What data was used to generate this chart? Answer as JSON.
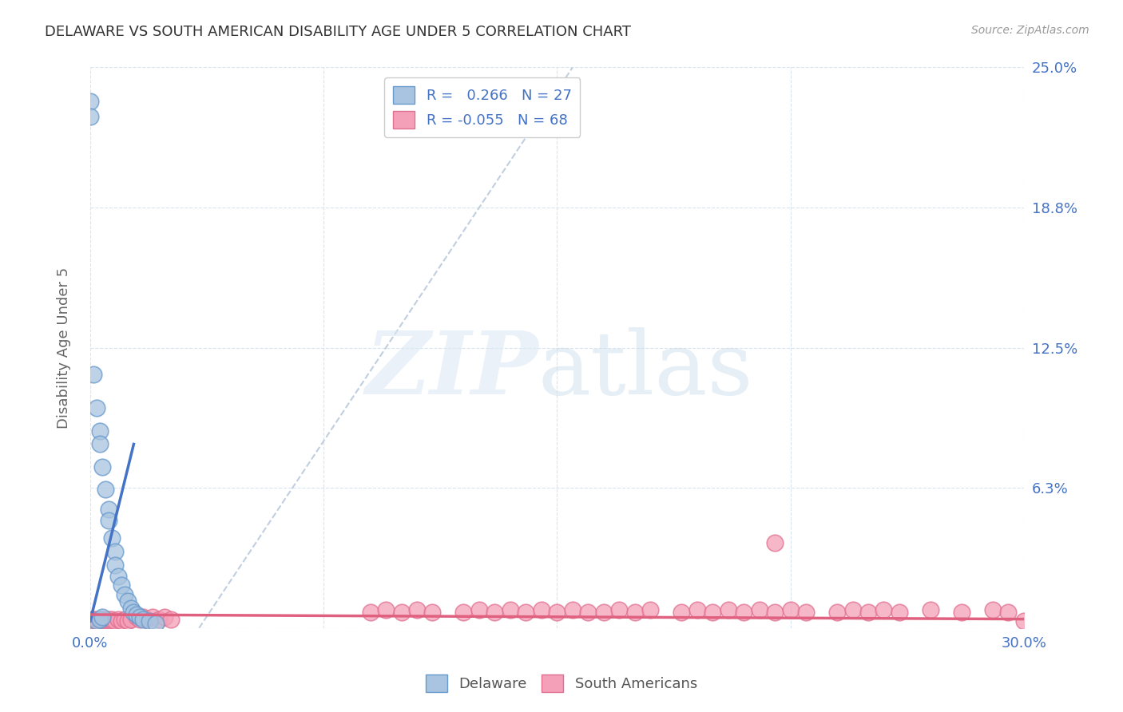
{
  "title": "DELAWARE VS SOUTH AMERICAN DISABILITY AGE UNDER 5 CORRELATION CHART",
  "source": "Source: ZipAtlas.com",
  "ylabel": "Disability Age Under 5",
  "xlim": [
    0.0,
    0.3
  ],
  "ylim": [
    0.0,
    0.25
  ],
  "xtick_positions": [
    0.0,
    0.075,
    0.15,
    0.225,
    0.3
  ],
  "xticklabels": [
    "0.0%",
    "",
    "",
    "",
    "30.0%"
  ],
  "ytick_positions": [
    0.0,
    0.0625,
    0.125,
    0.1875,
    0.25
  ],
  "yticklabels_right": [
    "",
    "6.3%",
    "12.5%",
    "18.8%",
    "25.0%"
  ],
  "delaware_R": 0.266,
  "delaware_N": 27,
  "south_american_R": -0.055,
  "south_american_N": 68,
  "delaware_color": "#a8c4e0",
  "delaware_edge_color": "#6699cc",
  "delaware_line_color": "#4472c4",
  "south_american_color": "#f4a0b8",
  "south_american_edge_color": "#e07090",
  "south_american_line_color": "#e06080",
  "diag_line_color": "#c0cfe0",
  "background_color": "#ffffff",
  "grid_color": "#d8e4f0",
  "delaware_x": [
    0.0,
    0.0,
    0.001,
    0.002,
    0.003,
    0.003,
    0.004,
    0.005,
    0.006,
    0.006,
    0.007,
    0.008,
    0.008,
    0.009,
    0.01,
    0.011,
    0.012,
    0.013,
    0.014,
    0.015,
    0.016,
    0.017,
    0.019,
    0.021,
    0.002,
    0.003,
    0.004
  ],
  "delaware_y": [
    0.235,
    0.228,
    0.113,
    0.098,
    0.088,
    0.082,
    0.072,
    0.062,
    0.053,
    0.048,
    0.04,
    0.034,
    0.028,
    0.023,
    0.019,
    0.015,
    0.012,
    0.009,
    0.007,
    0.006,
    0.005,
    0.004,
    0.003,
    0.002,
    0.003,
    0.004,
    0.005
  ],
  "south_american_x": [
    0.0,
    0.0,
    0.001,
    0.001,
    0.002,
    0.002,
    0.003,
    0.003,
    0.004,
    0.004,
    0.005,
    0.005,
    0.006,
    0.006,
    0.007,
    0.007,
    0.008,
    0.009,
    0.01,
    0.011,
    0.012,
    0.013,
    0.015,
    0.016,
    0.017,
    0.018,
    0.02,
    0.022,
    0.024,
    0.026,
    0.09,
    0.095,
    0.1,
    0.105,
    0.11,
    0.12,
    0.125,
    0.13,
    0.135,
    0.14,
    0.145,
    0.15,
    0.155,
    0.16,
    0.165,
    0.17,
    0.175,
    0.18,
    0.19,
    0.195,
    0.2,
    0.205,
    0.21,
    0.215,
    0.22,
    0.225,
    0.23,
    0.24,
    0.245,
    0.25,
    0.255,
    0.26,
    0.27,
    0.28,
    0.29,
    0.295,
    0.3,
    0.22
  ],
  "south_american_y": [
    0.003,
    0.004,
    0.003,
    0.004,
    0.003,
    0.004,
    0.003,
    0.004,
    0.003,
    0.004,
    0.003,
    0.004,
    0.003,
    0.004,
    0.003,
    0.004,
    0.003,
    0.004,
    0.003,
    0.004,
    0.003,
    0.004,
    0.005,
    0.004,
    0.005,
    0.004,
    0.005,
    0.004,
    0.005,
    0.004,
    0.007,
    0.008,
    0.007,
    0.008,
    0.007,
    0.007,
    0.008,
    0.007,
    0.008,
    0.007,
    0.008,
    0.007,
    0.008,
    0.007,
    0.007,
    0.008,
    0.007,
    0.008,
    0.007,
    0.008,
    0.007,
    0.008,
    0.007,
    0.008,
    0.007,
    0.008,
    0.007,
    0.007,
    0.008,
    0.007,
    0.008,
    0.007,
    0.008,
    0.007,
    0.008,
    0.007,
    0.003,
    0.038
  ],
  "diag_line_x": [
    0.035,
    0.155
  ],
  "diag_line_y": [
    0.0,
    0.25
  ],
  "delaware_line_x": [
    0.0,
    0.014
  ],
  "delaware_line_y": [
    0.003,
    0.082
  ],
  "south_american_line_x": [
    0.0,
    0.3
  ],
  "south_american_line_y": [
    0.006,
    0.004
  ]
}
